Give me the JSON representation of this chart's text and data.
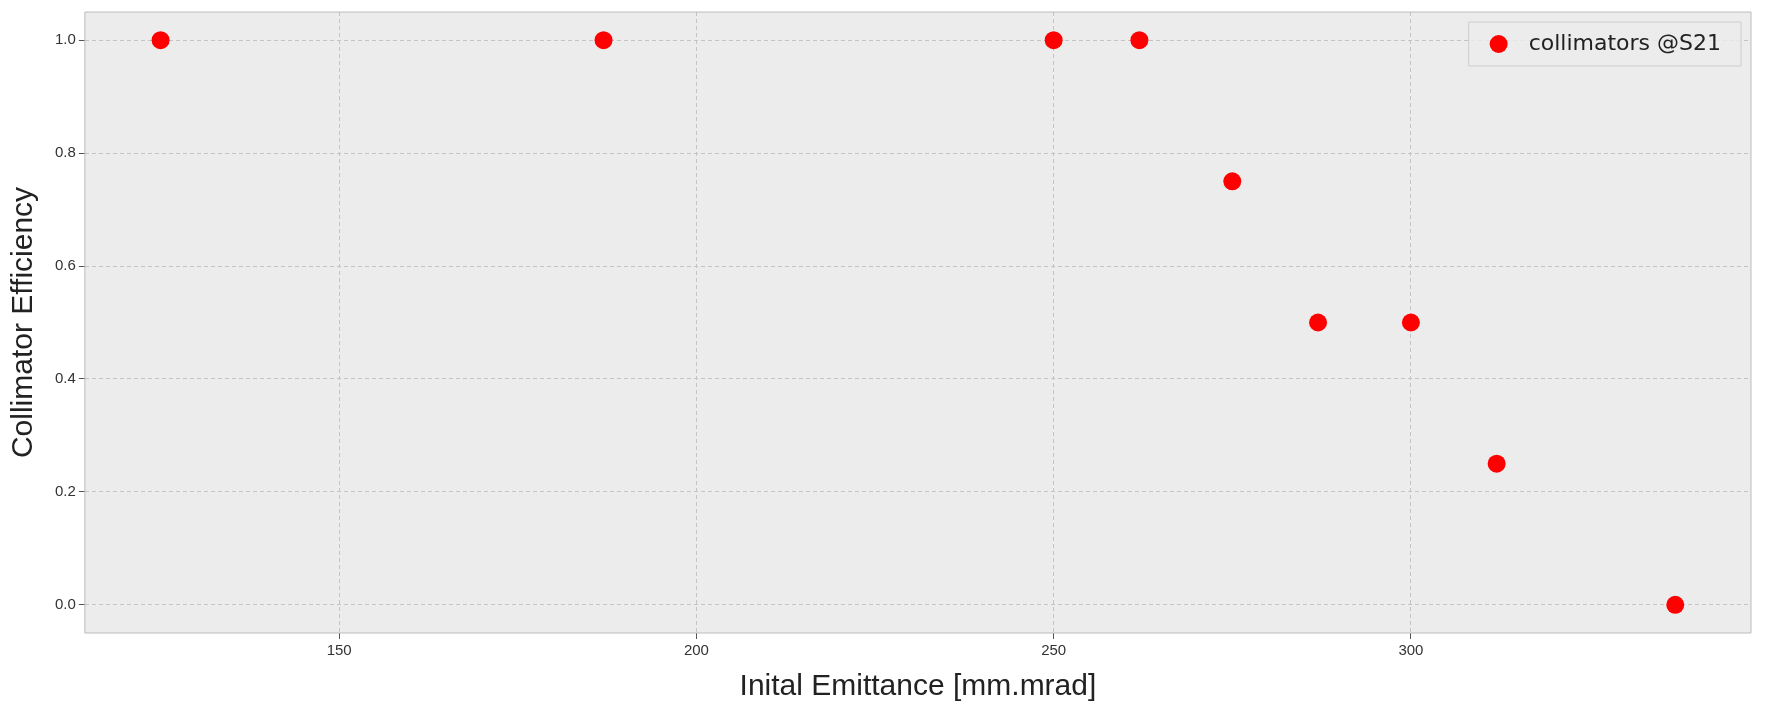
{
  "chart_data": {
    "type": "scatter",
    "xlabel": "Inital Emittance [mm.mrad]",
    "ylabel": "Collimator Efficiency",
    "x": [
      125,
      187,
      250,
      262,
      275,
      287,
      300,
      312,
      337
    ],
    "series": [
      {
        "name": "collimators @S21",
        "color": "#ff0000",
        "values": [
          1.0,
          1.0,
          1.0,
          1.0,
          0.75,
          0.5,
          0.5,
          0.25,
          0.0
        ]
      }
    ],
    "xlim": [
      114.4,
      347.6
    ],
    "xticks": [
      150,
      200,
      250,
      300
    ],
    "ylim": [
      -0.05,
      1.05
    ],
    "yticks": [
      {
        "value": 0,
        "label": "0.0"
      },
      {
        "value": 0.2,
        "label": "0.2"
      },
      {
        "value": 0.4,
        "label": "0.4"
      },
      {
        "value": 0.6,
        "label": "0.6"
      },
      {
        "value": 0.8,
        "label": "0.8"
      },
      {
        "value": 1.0,
        "label": "1.0"
      }
    ],
    "grid": true,
    "legend": "top right",
    "marker": "circle"
  }
}
